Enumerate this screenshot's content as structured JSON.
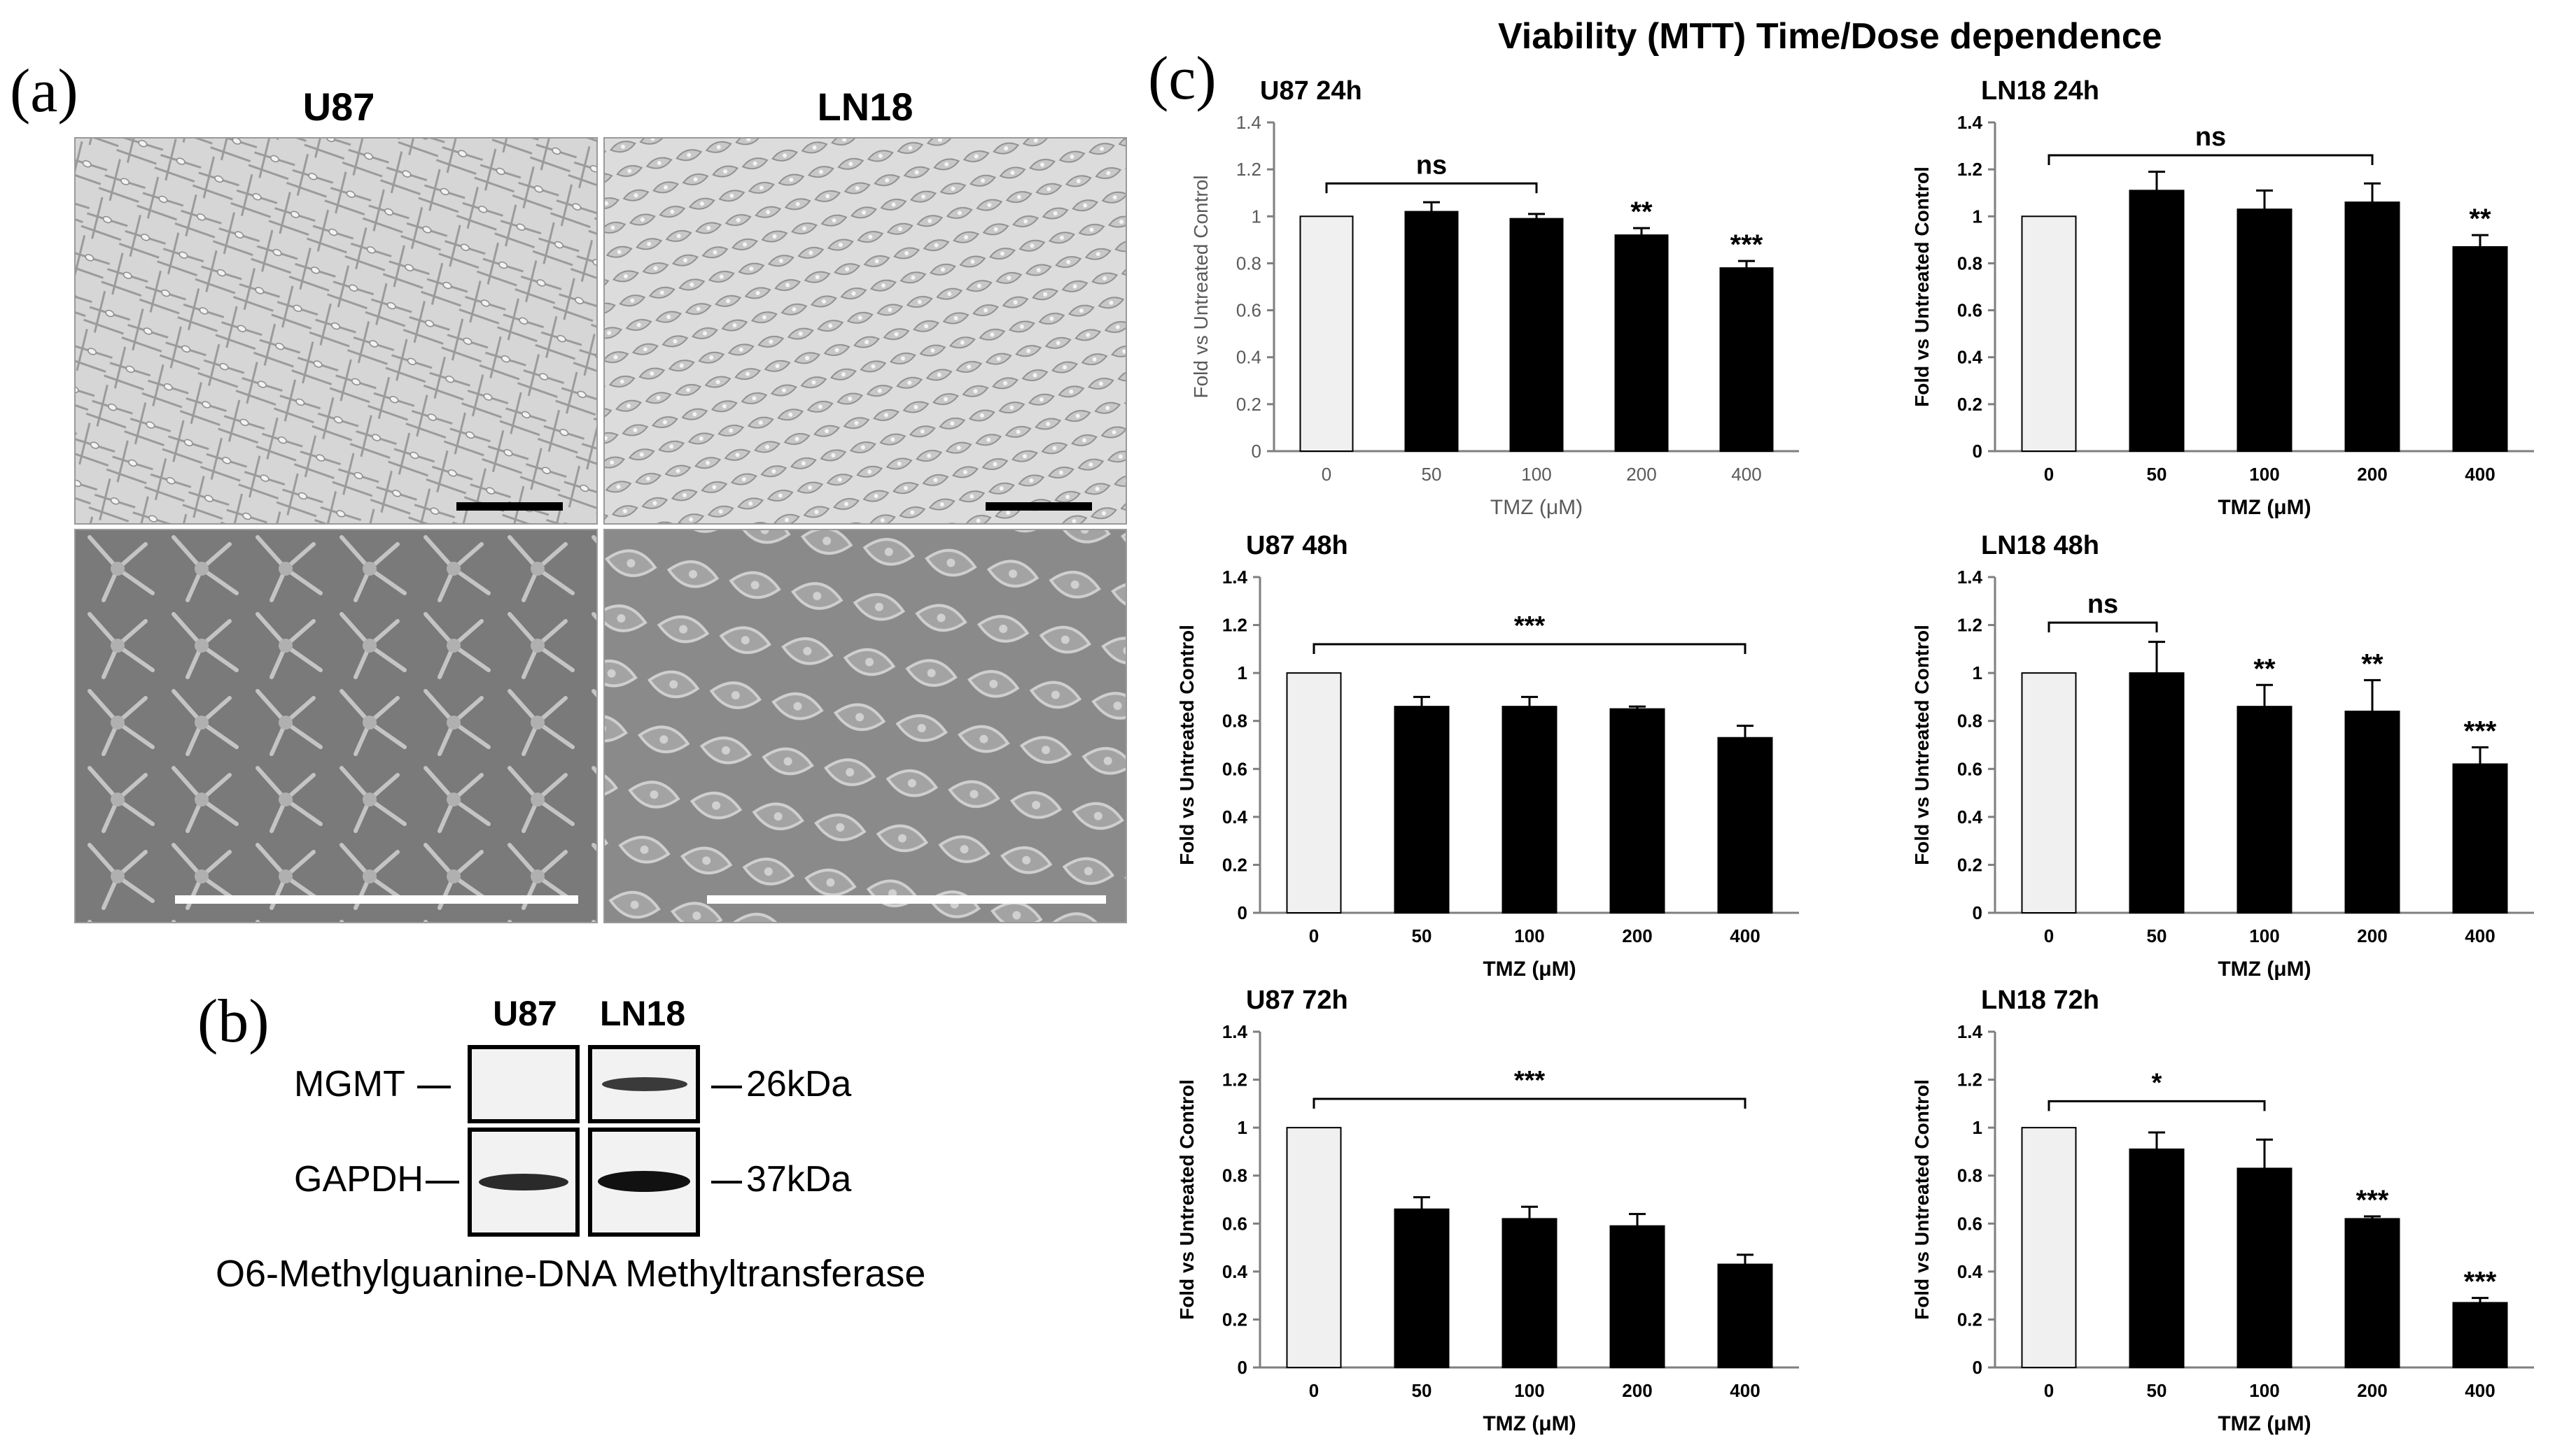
{
  "panel_a": {
    "letter": "(a)",
    "titles": [
      "U87",
      "LN18"
    ]
  },
  "panel_b": {
    "letter": "(b)",
    "columns": [
      "U87",
      "LN18"
    ],
    "rows": [
      {
        "protein": "MGMT",
        "size": "26kDa",
        "u87_band": 0.0,
        "ln18_band": 0.75
      },
      {
        "protein": "GAPDH",
        "size": "37kDa",
        "u87_band": 0.9,
        "ln18_band": 1.0
      }
    ],
    "caption": "O6-Methylguanine-DNA Methyltransferase"
  },
  "panel_c": {
    "letter": "(c)",
    "title": "Viability (MTT) Time/Dose dependence"
  },
  "colors": {
    "control_bar": "#f0f0f0",
    "treated_bar": "#000000",
    "axis": "#7f7f7f",
    "bracket": "#000000"
  },
  "chart_data": [
    {
      "type": "bar",
      "title": "U87 24h",
      "categories": [
        "0",
        "50",
        "100",
        "200",
        "400"
      ],
      "values": [
        1.0,
        1.02,
        0.99,
        0.92,
        0.78
      ],
      "errors": [
        0,
        0.04,
        0.02,
        0.03,
        0.03
      ],
      "xlabel": "TMZ (μM)",
      "ylabel": "Fold vs Untreated Control",
      "ylim": [
        0,
        1.4
      ],
      "yticks": [
        "0",
        "0.2",
        "0.4",
        "0.6",
        "0.8",
        "1",
        "1.2",
        "1.4"
      ],
      "style": "gray",
      "annotations": [
        {
          "bar": 3,
          "text": "**"
        },
        {
          "bar": 4,
          "text": "***"
        }
      ],
      "brackets": [
        {
          "from": 0,
          "to": 2,
          "y": 1.14,
          "text": "ns"
        }
      ]
    },
    {
      "type": "bar",
      "title": "LN18 24h",
      "categories": [
        "0",
        "50",
        "100",
        "200",
        "400"
      ],
      "values": [
        1.0,
        1.11,
        1.03,
        1.06,
        0.87
      ],
      "errors": [
        0,
        0.08,
        0.08,
        0.08,
        0.05
      ],
      "xlabel": "TMZ (μM)",
      "ylabel": "Fold vs Untreated Control",
      "ylim": [
        0,
        1.4
      ],
      "yticks": [
        "0",
        "0.2",
        "0.4",
        "0.6",
        "0.8",
        "1",
        "1.2",
        "1.4"
      ],
      "style": "bold",
      "annotations": [
        {
          "bar": 4,
          "text": "**"
        }
      ],
      "brackets": [
        {
          "from": 0,
          "to": 3,
          "y": 1.26,
          "text": "ns"
        }
      ]
    },
    {
      "type": "bar",
      "title": "U87 48h",
      "categories": [
        "0",
        "50",
        "100",
        "200",
        "400"
      ],
      "values": [
        1.0,
        0.86,
        0.86,
        0.85,
        0.73
      ],
      "errors": [
        0,
        0.04,
        0.04,
        0.01,
        0.05
      ],
      "xlabel": "TMZ (μM)",
      "ylabel": "Fold vs Untreated Control",
      "ylim": [
        0,
        1.4
      ],
      "yticks": [
        "0",
        "0.2",
        "0.4",
        "0.6",
        "0.8",
        "1",
        "1.2",
        "1.4"
      ],
      "style": "bold",
      "annotations": [],
      "brackets": [
        {
          "from": 0,
          "to": 4,
          "y": 1.12,
          "text": "***"
        }
      ]
    },
    {
      "type": "bar",
      "title": "LN18 48h",
      "categories": [
        "0",
        "50",
        "100",
        "200",
        "400"
      ],
      "values": [
        1.0,
        1.0,
        0.86,
        0.84,
        0.62
      ],
      "errors": [
        0,
        0.13,
        0.09,
        0.13,
        0.07
      ],
      "xlabel": "TMZ (μM)",
      "ylabel": "Fold vs Untreated Control",
      "ylim": [
        0,
        1.4
      ],
      "yticks": [
        "0",
        "0.2",
        "0.4",
        "0.6",
        "0.8",
        "1",
        "1.2",
        "1.4"
      ],
      "style": "bold",
      "annotations": [
        {
          "bar": 2,
          "text": "**"
        },
        {
          "bar": 3,
          "text": "**"
        },
        {
          "bar": 4,
          "text": "***"
        }
      ],
      "brackets": [
        {
          "from": 0,
          "to": 1,
          "y": 1.21,
          "text": "ns"
        }
      ]
    },
    {
      "type": "bar",
      "title": "U87 72h",
      "categories": [
        "0",
        "50",
        "100",
        "200",
        "400"
      ],
      "values": [
        1.0,
        0.66,
        0.62,
        0.59,
        0.43
      ],
      "errors": [
        0,
        0.05,
        0.05,
        0.05,
        0.04
      ],
      "xlabel": "TMZ (μM)",
      "ylabel": "Fold vs Untreated Control",
      "ylim": [
        0,
        1.4
      ],
      "yticks": [
        "0",
        "0.2",
        "0.4",
        "0.6",
        "0.8",
        "1",
        "1.2",
        "1.4"
      ],
      "style": "bold",
      "annotations": [],
      "brackets": [
        {
          "from": 0,
          "to": 4,
          "y": 1.12,
          "text": "***"
        }
      ]
    },
    {
      "type": "bar",
      "title": "LN18 72h",
      "categories": [
        "0",
        "50",
        "100",
        "200",
        "400"
      ],
      "values": [
        1.0,
        0.91,
        0.83,
        0.62,
        0.27
      ],
      "errors": [
        0,
        0.07,
        0.12,
        0.01,
        0.02
      ],
      "xlabel": "TMZ (μM)",
      "ylabel": "Fold vs Untreated Control",
      "ylim": [
        0,
        1.4
      ],
      "yticks": [
        "0",
        "0.2",
        "0.4",
        "0.6",
        "0.8",
        "1",
        "1.2",
        "1.4"
      ],
      "style": "bold",
      "annotations": [
        {
          "bar": 3,
          "text": "***"
        },
        {
          "bar": 4,
          "text": "***"
        }
      ],
      "brackets": [
        {
          "from": 0,
          "to": 2,
          "y": 1.11,
          "text": "*"
        }
      ]
    }
  ]
}
